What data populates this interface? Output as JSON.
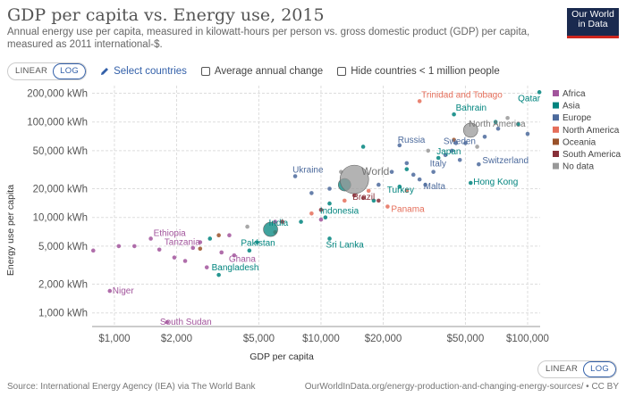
{
  "header": {
    "title": "GDP per capita vs. Energy use, 2015",
    "subtitle": "Annual energy use per capita, measured in kilowatt-hours per person vs. gross domestic product (GDP) per capita, measured as 2011 international-$.",
    "logo_line1": "Our World",
    "logo_line2": "in Data"
  },
  "controls": {
    "linear": "LINEAR",
    "log": "LOG",
    "select_countries": "Select countries",
    "avg_change": "Average annual change",
    "hide_small": "Hide countries < 1 million people"
  },
  "footer": {
    "source": "Source: International Energy Agency (IEA) via The World Bank",
    "url": "OurWorldInData.org/energy-production-and-changing-energy-sources/ • CC BY"
  },
  "colors": {
    "Africa": "#a2559c",
    "Asia": "#00847e",
    "Europe": "#4c6a9c",
    "North America": "#e56e5a",
    "Oceania": "#9a5129",
    "South America": "#883039",
    "No data": "#999999"
  },
  "chart_data": {
    "type": "scatter",
    "xlabel": "GDP per capita",
    "ylabel": "Energy use per capita",
    "x_scale": "log",
    "y_scale": "log",
    "xlim": [
      780,
      115000
    ],
    "ylim": [
      720,
      240000
    ],
    "x_ticks": [
      1000,
      2000,
      5000,
      10000,
      20000,
      50000,
      100000
    ],
    "x_tick_labels": [
      "$1,000",
      "$2,000",
      "$5,000",
      "$10,000",
      "$20,000",
      "$50,000",
      "$100,000"
    ],
    "y_ticks": [
      1000,
      2000,
      5000,
      10000,
      20000,
      50000,
      100000,
      200000
    ],
    "y_tick_labels": [
      "1,000 kWh",
      "2,000 kWh",
      "5,000 kWh",
      "10,000 kWh",
      "20,000 kWh",
      "50,000 kWh",
      "100,000 kWh",
      "200,000 kWh"
    ],
    "grid": true,
    "legend": {
      "position": "right",
      "entries": [
        "Africa",
        "Asia",
        "Europe",
        "North America",
        "Oceania",
        "South America",
        "No data"
      ]
    },
    "labeled_points": [
      {
        "label": "Qatar",
        "region": "Asia",
        "x": 114000,
        "y": 205000
      },
      {
        "label": "Trinidad and Tobago",
        "region": "North America",
        "x": 30000,
        "y": 165000
      },
      {
        "label": "Bahrain",
        "region": "Asia",
        "x": 44000,
        "y": 120000
      },
      {
        "label": "North America",
        "region": "No data",
        "x": 53000,
        "y": 82000,
        "size": 8
      },
      {
        "label": "Russia",
        "region": "Europe",
        "x": 24000,
        "y": 57000
      },
      {
        "label": "Sweden",
        "region": "Europe",
        "x": 45000,
        "y": 60000
      },
      {
        "label": "Japan",
        "region": "Asia",
        "x": 37000,
        "y": 42000
      },
      {
        "label": "Switzerland",
        "region": "Europe",
        "x": 58000,
        "y": 36000
      },
      {
        "label": "Italy",
        "region": "Europe",
        "x": 35000,
        "y": 30000
      },
      {
        "label": "Hong Kong",
        "region": "Asia",
        "x": 53000,
        "y": 23000
      },
      {
        "label": "Malta",
        "region": "Europe",
        "x": 32000,
        "y": 22000
      },
      {
        "label": "Turkey",
        "region": "Asia",
        "x": 24000,
        "y": 21000
      },
      {
        "label": "World",
        "region": "No data",
        "x": 14500,
        "y": 25000,
        "size": 16
      },
      {
        "label": "Ukraine",
        "region": "Europe",
        "x": 7500,
        "y": 27000
      },
      {
        "label": "Brazil",
        "region": "South America",
        "x": 14500,
        "y": 17000
      },
      {
        "label": "Panama",
        "region": "North America",
        "x": 21000,
        "y": 13000
      },
      {
        "label": "Indonesia",
        "region": "Asia",
        "x": 10500,
        "y": 10000
      },
      {
        "label": "India",
        "region": "Asia",
        "x": 5700,
        "y": 7500,
        "size": 8
      },
      {
        "label": "Pakistan",
        "region": "Asia",
        "x": 4900,
        "y": 5500
      },
      {
        "label": "Sri Lanka",
        "region": "Asia",
        "x": 11000,
        "y": 6000
      },
      {
        "label": "Ethiopia",
        "region": "Africa",
        "x": 1500,
        "y": 6000
      },
      {
        "label": "Tanzania",
        "region": "Africa",
        "x": 2600,
        "y": 5500
      },
      {
        "label": "Ghana",
        "region": "Africa",
        "x": 3800,
        "y": 4000
      },
      {
        "label": "Bangladesh",
        "region": "Asia",
        "x": 3200,
        "y": 2500
      },
      {
        "label": "Niger",
        "region": "Africa",
        "x": 950,
        "y": 1700
      },
      {
        "label": "South Sudan",
        "region": "Africa",
        "x": 1800,
        "y": 800
      }
    ],
    "other_points": [
      {
        "region": "Africa",
        "x": 790,
        "y": 4500
      },
      {
        "region": "Africa",
        "x": 1050,
        "y": 5000
      },
      {
        "region": "Africa",
        "x": 1250,
        "y": 5000
      },
      {
        "region": "Africa",
        "x": 1650,
        "y": 4600
      },
      {
        "region": "Africa",
        "x": 1950,
        "y": 3800
      },
      {
        "region": "Africa",
        "x": 2200,
        "y": 3500
      },
      {
        "region": "Africa",
        "x": 2400,
        "y": 4800
      },
      {
        "region": "Africa",
        "x": 2800,
        "y": 3000
      },
      {
        "region": "Africa",
        "x": 3300,
        "y": 4300
      },
      {
        "region": "Africa",
        "x": 3600,
        "y": 6500
      },
      {
        "region": "Africa",
        "x": 6000,
        "y": 9000
      },
      {
        "region": "Africa",
        "x": 10000,
        "y": 9500
      },
      {
        "region": "Asia",
        "x": 2900,
        "y": 6000
      },
      {
        "region": "Asia",
        "x": 4500,
        "y": 4500
      },
      {
        "region": "Asia",
        "x": 8000,
        "y": 9000
      },
      {
        "region": "Asia",
        "x": 11000,
        "y": 14000
      },
      {
        "region": "Asia",
        "x": 16000,
        "y": 55000
      },
      {
        "region": "Asia",
        "x": 13000,
        "y": 22000,
        "size": 7
      },
      {
        "region": "Asia",
        "x": 18000,
        "y": 15000
      },
      {
        "region": "Asia",
        "x": 26000,
        "y": 32000
      },
      {
        "region": "Asia",
        "x": 70000,
        "y": 100000
      },
      {
        "region": "Asia",
        "x": 90000,
        "y": 95000
      },
      {
        "region": "Europe",
        "x": 9000,
        "y": 18000
      },
      {
        "region": "Europe",
        "x": 11000,
        "y": 20000
      },
      {
        "region": "Europe",
        "x": 19000,
        "y": 22000
      },
      {
        "region": "Europe",
        "x": 22000,
        "y": 30000
      },
      {
        "region": "Europe",
        "x": 26000,
        "y": 37000
      },
      {
        "region": "Europe",
        "x": 28000,
        "y": 28000
      },
      {
        "region": "Europe",
        "x": 30000,
        "y": 25000
      },
      {
        "region": "Europe",
        "x": 40000,
        "y": 45000
      },
      {
        "region": "Europe",
        "x": 43000,
        "y": 50000
      },
      {
        "region": "Europe",
        "x": 47000,
        "y": 40000
      },
      {
        "region": "Europe",
        "x": 50000,
        "y": 60000
      },
      {
        "region": "Europe",
        "x": 62000,
        "y": 70000
      },
      {
        "region": "Europe",
        "x": 72000,
        "y": 85000
      },
      {
        "region": "Europe",
        "x": 100000,
        "y": 75000
      },
      {
        "region": "North America",
        "x": 6000,
        "y": 7000
      },
      {
        "region": "North America",
        "x": 9000,
        "y": 11000
      },
      {
        "region": "North America",
        "x": 13000,
        "y": 15000
      },
      {
        "region": "North America",
        "x": 17000,
        "y": 19000
      },
      {
        "region": "North America",
        "x": 26000,
        "y": 19000
      },
      {
        "region": "Oceania",
        "x": 2600,
        "y": 4700
      },
      {
        "region": "Oceania",
        "x": 3200,
        "y": 6500
      },
      {
        "region": "Oceania",
        "x": 44000,
        "y": 65000
      },
      {
        "region": "South America",
        "x": 6500,
        "y": 9000
      },
      {
        "region": "South America",
        "x": 10000,
        "y": 12000
      },
      {
        "region": "South America",
        "x": 16000,
        "y": 16000
      },
      {
        "region": "South America",
        "x": 19000,
        "y": 15000
      },
      {
        "region": "No data",
        "x": 4400,
        "y": 8000
      },
      {
        "region": "No data",
        "x": 12500,
        "y": 30000
      },
      {
        "region": "No data",
        "x": 33000,
        "y": 50000
      },
      {
        "region": "No data",
        "x": 57000,
        "y": 55000
      },
      {
        "region": "No data",
        "x": 80000,
        "y": 110000
      }
    ]
  }
}
